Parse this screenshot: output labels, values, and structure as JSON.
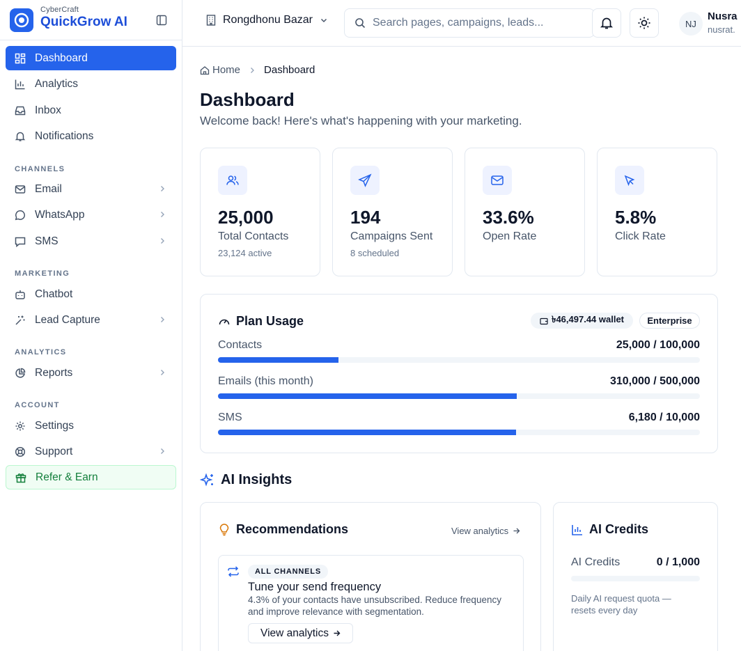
{
  "brand": {
    "company": "CyberCraft",
    "product": "QuickGrow AI"
  },
  "sidebar": {
    "items": [
      {
        "label": "Dashboard"
      },
      {
        "label": "Analytics"
      },
      {
        "label": "Inbox"
      },
      {
        "label": "Notifications"
      }
    ],
    "channels_label": "CHANNELS",
    "channels": [
      {
        "label": "Email"
      },
      {
        "label": "WhatsApp"
      },
      {
        "label": "SMS"
      }
    ],
    "marketing_label": "MARKETING",
    "marketing": [
      {
        "label": "Chatbot"
      },
      {
        "label": "Lead Capture"
      }
    ],
    "analytics_label": "ANALYTICS",
    "analytics": [
      {
        "label": "Reports"
      }
    ],
    "account_label": "ACCOUNT",
    "account": [
      {
        "label": "Settings"
      },
      {
        "label": "Support"
      },
      {
        "label": "Refer & Earn"
      }
    ]
  },
  "header": {
    "org": "Rongdhonu Bazar",
    "search_placeholder": "Search pages, campaigns, leads...",
    "user_initials": "NJ",
    "user_name": "Nusra",
    "user_email": "nusrat."
  },
  "breadcrumb": {
    "home": "Home",
    "current": "Dashboard"
  },
  "page": {
    "title": "Dashboard",
    "subtitle": "Welcome back! Here's what's happening with your marketing."
  },
  "stats": [
    {
      "value": "25,000",
      "label": "Total Contacts",
      "sub": "23,124 active"
    },
    {
      "value": "194",
      "label": "Campaigns Sent",
      "sub": "8 scheduled"
    },
    {
      "value": "33.6%",
      "label": "Open Rate",
      "sub": ""
    },
    {
      "value": "5.8%",
      "label": "Click Rate",
      "sub": ""
    }
  ],
  "plan": {
    "title": "Plan Usage",
    "wallet": "৳46,497.44 wallet",
    "tier": "Enterprise",
    "rows": [
      {
        "label": "Contacts",
        "value": "25,000 / 100,000",
        "fraction": 0.25
      },
      {
        "label": "Emails (this month)",
        "value": "310,000 / 500,000",
        "fraction": 0.62
      },
      {
        "label": "SMS",
        "value": "6,180 / 10,000",
        "fraction": 0.618
      }
    ]
  },
  "ai": {
    "title": "AI Insights",
    "recommendations": {
      "title": "Recommendations",
      "link": "View analytics",
      "item": {
        "tag": "ALL CHANNELS",
        "title": "Tune your send frequency",
        "description": "4.3% of your contacts have unsubscribed. Reduce frequency and improve relevance with segmentation.",
        "action": "View analytics"
      }
    },
    "credits": {
      "title": "AI Credits",
      "label": "AI Credits",
      "value": "0 / 1,000",
      "fraction": 0,
      "note": "Daily AI request quota — resets every day"
    }
  },
  "colors": {
    "primary": "#2563eb",
    "refer_green": "#15803d",
    "border": "#e2e8f0"
  }
}
